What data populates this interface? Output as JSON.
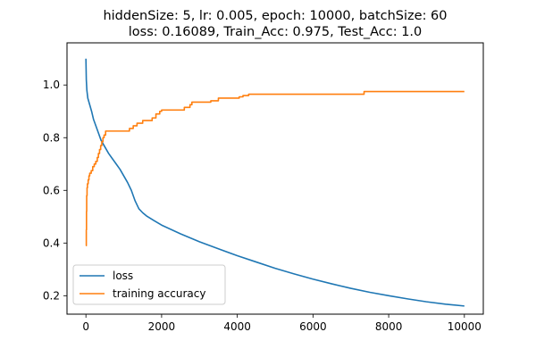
{
  "chart_data": {
    "type": "line",
    "title_line1": "hiddenSize: 5, lr: 0.005, epoch: 10000, batchSize: 60",
    "title_line2": "loss: 0.16089, Train_Acc: 0.975, Test_Acc: 1.0",
    "xlabel": "",
    "ylabel": "",
    "xlim": [
      -500,
      10500
    ],
    "ylim": [
      0.13,
      1.16
    ],
    "x_ticks": [
      0,
      2000,
      4000,
      6000,
      8000,
      10000
    ],
    "y_ticks": [
      0.2,
      0.4,
      0.6,
      0.8,
      1.0
    ],
    "x_tick_labels": [
      "0",
      "2000",
      "4000",
      "6000",
      "8000",
      "10000"
    ],
    "y_tick_labels": [
      "0.2",
      "0.4",
      "0.6",
      "0.8",
      "1.0"
    ],
    "grid": false,
    "legend_position": "lower-left",
    "series": [
      {
        "name": "loss",
        "color": "#1f77b4",
        "kind": "line",
        "points": [
          [
            0,
            1.1
          ],
          [
            10,
            1.02
          ],
          [
            25,
            0.98
          ],
          [
            50,
            0.95
          ],
          [
            100,
            0.925
          ],
          [
            150,
            0.9
          ],
          [
            200,
            0.87
          ],
          [
            300,
            0.83
          ],
          [
            400,
            0.79
          ],
          [
            500,
            0.765
          ],
          [
            600,
            0.74
          ],
          [
            700,
            0.72
          ],
          [
            800,
            0.7
          ],
          [
            900,
            0.68
          ],
          [
            1000,
            0.655
          ],
          [
            1100,
            0.63
          ],
          [
            1200,
            0.6
          ],
          [
            1300,
            0.56
          ],
          [
            1400,
            0.53
          ],
          [
            1500,
            0.515
          ],
          [
            1600,
            0.503
          ],
          [
            1800,
            0.485
          ],
          [
            2000,
            0.468
          ],
          [
            2500,
            0.435
          ],
          [
            3000,
            0.405
          ],
          [
            3500,
            0.378
          ],
          [
            4000,
            0.352
          ],
          [
            4500,
            0.328
          ],
          [
            5000,
            0.304
          ],
          [
            5500,
            0.283
          ],
          [
            6000,
            0.263
          ],
          [
            6500,
            0.245
          ],
          [
            7000,
            0.228
          ],
          [
            7500,
            0.213
          ],
          [
            8000,
            0.2
          ],
          [
            8500,
            0.188
          ],
          [
            9000,
            0.177
          ],
          [
            9500,
            0.168
          ],
          [
            10000,
            0.16089
          ]
        ]
      },
      {
        "name": "training accuracy",
        "color": "#ff7f0e",
        "kind": "step",
        "points": [
          [
            0,
            0.39
          ],
          [
            10,
            0.45
          ],
          [
            15,
            0.52
          ],
          [
            20,
            0.58
          ],
          [
            30,
            0.61
          ],
          [
            40,
            0.625
          ],
          [
            60,
            0.64
          ],
          [
            80,
            0.655
          ],
          [
            100,
            0.665
          ],
          [
            140,
            0.675
          ],
          [
            180,
            0.69
          ],
          [
            220,
            0.7
          ],
          [
            260,
            0.71
          ],
          [
            300,
            0.725
          ],
          [
            330,
            0.74
          ],
          [
            360,
            0.755
          ],
          [
            390,
            0.77
          ],
          [
            420,
            0.785
          ],
          [
            450,
            0.8
          ],
          [
            480,
            0.81
          ],
          [
            520,
            0.825
          ],
          [
            1100,
            0.825
          ],
          [
            1150,
            0.835
          ],
          [
            1250,
            0.845
          ],
          [
            1350,
            0.855
          ],
          [
            1500,
            0.865
          ],
          [
            1750,
            0.875
          ],
          [
            1850,
            0.89
          ],
          [
            1950,
            0.9
          ],
          [
            2000,
            0.905
          ],
          [
            2600,
            0.915
          ],
          [
            2750,
            0.925
          ],
          [
            2800,
            0.935
          ],
          [
            3300,
            0.94
          ],
          [
            3500,
            0.95
          ],
          [
            4050,
            0.955
          ],
          [
            4150,
            0.96
          ],
          [
            4300,
            0.965
          ],
          [
            7350,
            0.975
          ],
          [
            10000,
            0.975
          ]
        ]
      }
    ]
  }
}
